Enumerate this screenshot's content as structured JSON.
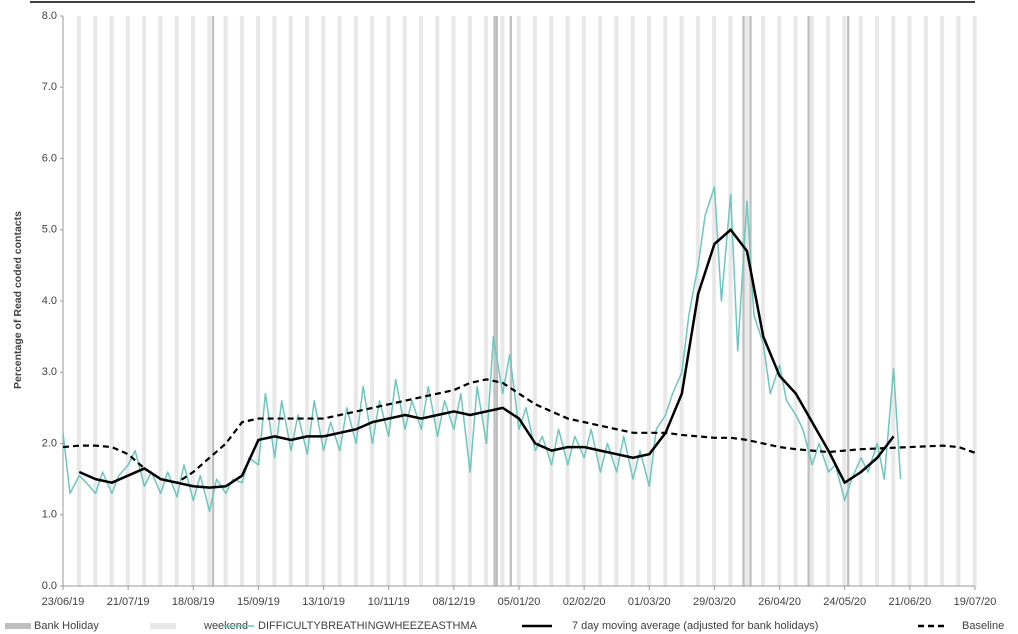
{
  "chart_data": {
    "type": "line",
    "y_label": "Percentage of Read coded contacts",
    "xlim": [
      "23/06/19",
      "19/07/20"
    ],
    "xticks": [
      "23/06/19",
      "21/07/19",
      "18/08/19",
      "15/09/19",
      "13/10/19",
      "10/11/19",
      "08/12/19",
      "05/01/20",
      "02/02/20",
      "01/03/20",
      "29/03/20",
      "26/04/20",
      "24/05/20",
      "21/06/20",
      "19/07/20"
    ],
    "ylim": [
      0,
      8
    ],
    "yticks": [
      {
        "value": 0,
        "label": "0.0"
      },
      {
        "value": 1,
        "label": "1.0"
      },
      {
        "value": 2,
        "label": "2.0"
      },
      {
        "value": 3,
        "label": "3.0"
      },
      {
        "value": 4,
        "label": "4.0"
      },
      {
        "value": 5,
        "label": "5.0"
      },
      {
        "value": 6,
        "label": "6.0"
      },
      {
        "value": 7,
        "label": "7.0"
      },
      {
        "value": 8,
        "label": "8.0"
      }
    ],
    "grid": false,
    "bank_holiday": {
      "name": "Bank Holiday",
      "color": "#bfbfbf",
      "dates": [
        "26/08/19",
        "25/12/19",
        "26/12/19",
        "01/01/20",
        "10/04/20",
        "13/04/20",
        "08/05/20",
        "25/05/20"
      ]
    },
    "weekend": {
      "name": "weekend",
      "color": "#e8e8e8"
    },
    "series": [
      {
        "name": "DIFFICULTYBREATHINGWHEEZEASTHMA",
        "color": "#6cc7bf",
        "style": "solid",
        "x": [
          "23/06/19",
          "26/06/19",
          "30/06/19",
          "03/07/19",
          "07/07/19",
          "10/07/19",
          "14/07/19",
          "17/07/19",
          "21/07/19",
          "24/07/19",
          "28/07/19",
          "31/07/19",
          "04/08/19",
          "07/08/19",
          "11/08/19",
          "14/08/19",
          "18/08/19",
          "21/08/19",
          "25/08/19",
          "28/08/19",
          "01/09/19",
          "04/09/19",
          "08/09/19",
          "11/09/19",
          "15/09/19",
          "18/09/19",
          "22/09/19",
          "25/09/19",
          "29/09/19",
          "02/10/19",
          "06/10/19",
          "09/10/19",
          "13/10/19",
          "16/10/19",
          "20/10/19",
          "23/10/19",
          "27/10/19",
          "30/10/19",
          "03/11/19",
          "06/11/19",
          "10/11/19",
          "13/11/19",
          "17/11/19",
          "20/11/19",
          "24/11/19",
          "27/11/19",
          "01/12/19",
          "04/12/19",
          "08/12/19",
          "11/12/19",
          "15/12/19",
          "18/12/19",
          "22/12/19",
          "25/12/19",
          "29/12/19",
          "01/01/20",
          "05/01/20",
          "08/01/20",
          "12/01/20",
          "15/01/20",
          "19/01/20",
          "22/01/20",
          "26/01/20",
          "29/01/20",
          "02/02/20",
          "05/02/20",
          "09/02/20",
          "12/02/20",
          "16/02/20",
          "19/02/20",
          "23/02/20",
          "26/02/20",
          "01/03/20",
          "04/03/20",
          "08/03/20",
          "11/03/20",
          "15/03/20",
          "18/03/20",
          "22/03/20",
          "25/03/20",
          "29/03/20",
          "01/04/20",
          "05/04/20",
          "08/04/20",
          "12/04/20",
          "15/04/20",
          "19/04/20",
          "22/04/20",
          "26/04/20",
          "29/04/20",
          "03/05/20",
          "06/05/20",
          "10/05/20",
          "13/05/20",
          "17/05/20",
          "20/05/20",
          "24/05/20",
          "27/05/20",
          "31/05/20",
          "03/06/20",
          "07/06/20",
          "10/06/20",
          "14/06/20",
          "17/06/20"
        ],
        "values": [
          2.15,
          1.3,
          1.55,
          1.45,
          1.3,
          1.6,
          1.3,
          1.55,
          1.7,
          1.9,
          1.4,
          1.6,
          1.3,
          1.6,
          1.25,
          1.7,
          1.2,
          1.55,
          1.05,
          1.5,
          1.3,
          1.5,
          1.45,
          1.8,
          1.7,
          2.7,
          1.8,
          2.6,
          1.9,
          2.4,
          1.85,
          2.6,
          1.9,
          2.3,
          1.9,
          2.5,
          2.0,
          2.8,
          2.0,
          2.6,
          2.1,
          2.9,
          2.2,
          2.6,
          2.2,
          2.8,
          2.1,
          2.6,
          2.2,
          2.7,
          1.6,
          2.8,
          2.0,
          3.5,
          2.7,
          3.25,
          2.2,
          2.5,
          1.9,
          2.1,
          1.7,
          2.2,
          1.7,
          2.1,
          1.8,
          2.2,
          1.6,
          2.0,
          1.6,
          2.1,
          1.5,
          1.9,
          1.4,
          2.2,
          2.4,
          2.7,
          3.0,
          3.8,
          4.5,
          5.2,
          5.6,
          4.0,
          5.5,
          3.3,
          5.4,
          3.8,
          3.4,
          2.7,
          3.1,
          2.6,
          2.4,
          2.2,
          1.7,
          2.0,
          1.6,
          1.7,
          1.2,
          1.5,
          1.8,
          1.6,
          2.0,
          1.5,
          3.05,
          1.5
        ]
      },
      {
        "name": "7 day moving average (adjusted for bank holidays)",
        "color": "#000000",
        "style": "solid",
        "x": [
          "30/06/19",
          "07/07/19",
          "14/07/19",
          "21/07/19",
          "28/07/19",
          "04/08/19",
          "11/08/19",
          "18/08/19",
          "25/08/19",
          "01/09/19",
          "08/09/19",
          "15/09/19",
          "22/09/19",
          "29/09/19",
          "06/10/19",
          "13/10/19",
          "20/10/19",
          "27/10/19",
          "03/11/19",
          "10/11/19",
          "17/11/19",
          "24/11/19",
          "01/12/19",
          "08/12/19",
          "15/12/19",
          "22/12/19",
          "29/12/19",
          "05/01/20",
          "12/01/20",
          "19/01/20",
          "26/01/20",
          "02/02/20",
          "09/02/20",
          "16/02/20",
          "23/02/20",
          "01/03/20",
          "08/03/20",
          "15/03/20",
          "22/03/20",
          "29/03/20",
          "05/04/20",
          "12/04/20",
          "19/04/20",
          "26/04/20",
          "03/05/20",
          "10/05/20",
          "17/05/20",
          "24/05/20",
          "31/05/20",
          "07/06/20",
          "14/06/20"
        ],
        "values": [
          1.6,
          1.5,
          1.45,
          1.55,
          1.65,
          1.5,
          1.45,
          1.4,
          1.38,
          1.4,
          1.55,
          2.05,
          2.1,
          2.05,
          2.1,
          2.1,
          2.15,
          2.2,
          2.3,
          2.35,
          2.4,
          2.35,
          2.4,
          2.45,
          2.4,
          2.45,
          2.5,
          2.35,
          2.0,
          1.9,
          1.95,
          1.95,
          1.9,
          1.85,
          1.8,
          1.85,
          2.15,
          2.7,
          4.1,
          4.8,
          5.0,
          4.7,
          3.5,
          2.95,
          2.7,
          2.3,
          1.9,
          1.45,
          1.6,
          1.8,
          2.1
        ]
      },
      {
        "name": "Baseline",
        "color": "#000000",
        "style": "dashed",
        "x": [
          "23/06/19",
          "30/06/19",
          "07/07/19",
          "14/07/19",
          "21/07/19",
          "28/07/19",
          "04/08/19",
          "11/08/19",
          "18/08/19",
          "25/08/19",
          "01/09/19",
          "08/09/19",
          "15/09/19",
          "22/09/19",
          "29/09/19",
          "06/10/19",
          "13/10/19",
          "20/10/19",
          "27/10/19",
          "03/11/19",
          "10/11/19",
          "17/11/19",
          "24/11/19",
          "01/12/19",
          "08/12/19",
          "15/12/19",
          "22/12/19",
          "29/12/19",
          "05/01/20",
          "12/01/20",
          "19/01/20",
          "26/01/20",
          "02/02/20",
          "09/02/20",
          "16/02/20",
          "23/02/20",
          "01/03/20",
          "08/03/20",
          "15/03/20",
          "22/03/20",
          "29/03/20",
          "05/04/20",
          "12/04/20",
          "19/04/20",
          "26/04/20",
          "03/05/20",
          "10/05/20",
          "17/05/20",
          "24/05/20",
          "31/05/20",
          "07/06/20",
          "14/06/20",
          "21/06/20",
          "28/06/20",
          "05/07/20",
          "12/07/20",
          "19/07/20"
        ],
        "values": [
          1.95,
          1.97,
          1.97,
          1.95,
          1.85,
          1.65,
          1.5,
          1.45,
          1.6,
          1.8,
          2.0,
          2.3,
          2.35,
          2.35,
          2.35,
          2.35,
          2.35,
          2.4,
          2.45,
          2.5,
          2.55,
          2.6,
          2.65,
          2.7,
          2.75,
          2.85,
          2.9,
          2.85,
          2.7,
          2.55,
          2.45,
          2.35,
          2.3,
          2.25,
          2.2,
          2.15,
          2.15,
          2.15,
          2.12,
          2.1,
          2.08,
          2.08,
          2.05,
          2.0,
          1.95,
          1.92,
          1.9,
          1.88,
          1.9,
          1.92,
          1.93,
          1.94,
          1.95,
          1.96,
          1.97,
          1.95,
          1.87
        ]
      }
    ]
  }
}
